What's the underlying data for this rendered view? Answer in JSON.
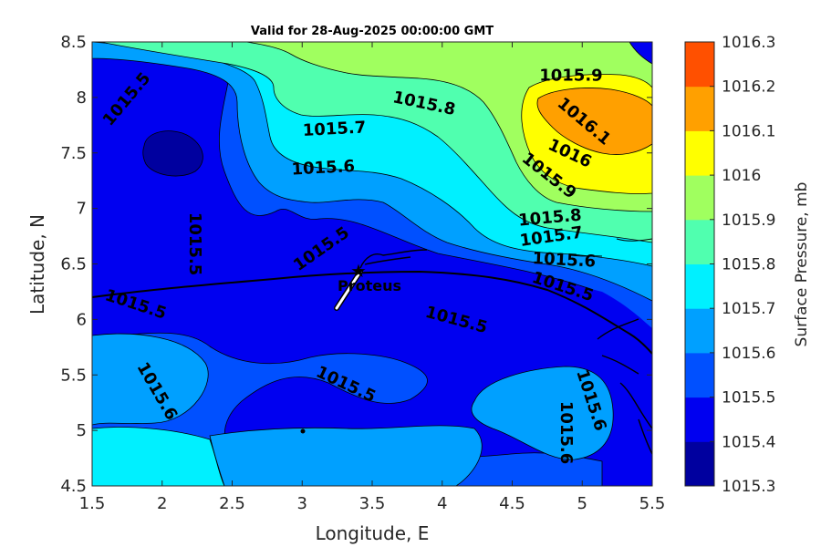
{
  "chart_data": {
    "type": "contour",
    "title": "Valid for 28-Aug-2025 00:00:00 GMT",
    "xlabel": "Longitude, E",
    "ylabel": "Latitude, N",
    "xlim": [
      1.5,
      5.5
    ],
    "ylim": [
      4.5,
      8.5
    ],
    "xticks": [
      "1.5",
      "2",
      "2.5",
      "3",
      "3.5",
      "4",
      "4.5",
      "5",
      "5.5"
    ],
    "yticks": [
      "4.5",
      "5",
      "5.5",
      "6",
      "6.5",
      "7",
      "7.5",
      "8",
      "8.5"
    ],
    "colorbar": {
      "label": "Surface Pressure, mb",
      "levels": [
        1015.3,
        1015.4,
        1015.5,
        1015.6,
        1015.7,
        1015.8,
        1015.9,
        1016.0,
        1016.1,
        1016.2,
        1016.3
      ],
      "tick_labels": [
        "1015.3",
        "1015.4",
        "1015.5",
        "1015.6",
        "1015.7",
        "1015.8",
        "1015.9",
        "1016",
        "1016.1",
        "1016.2",
        "1016.3"
      ],
      "colors": [
        "#00009f",
        "#0000f0",
        "#0050ff",
        "#00a0ff",
        "#00f0ff",
        "#50ffaf",
        "#a0ff5f",
        "#ffff00",
        "#ffa000",
        "#ff5000",
        "#ff0000"
      ]
    },
    "contour_labels": [
      {
        "text": "1015.5",
        "lon": 1.75,
        "lat": 7.98,
        "angle": -50
      },
      {
        "text": "1015.9",
        "lon": 4.92,
        "lat": 8.19,
        "angle": 0
      },
      {
        "text": "1015.8",
        "lon": 3.87,
        "lat": 7.94,
        "angle": 12
      },
      {
        "text": "1015.7",
        "lon": 3.23,
        "lat": 7.71,
        "angle": -3
      },
      {
        "text": "1016.1",
        "lon": 5.01,
        "lat": 7.78,
        "angle": 40
      },
      {
        "text": "1016",
        "lon": 4.91,
        "lat": 7.49,
        "angle": 25
      },
      {
        "text": "1015.6",
        "lon": 3.15,
        "lat": 7.36,
        "angle": -3
      },
      {
        "text": "1015.9",
        "lon": 4.76,
        "lat": 7.29,
        "angle": 38
      },
      {
        "text": "1015.8",
        "lon": 4.77,
        "lat": 6.91,
        "angle": -5
      },
      {
        "text": "1015.5",
        "lon": 2.23,
        "lat": 6.68,
        "angle": 90
      },
      {
        "text": "1015.5",
        "lon": 3.14,
        "lat": 6.63,
        "angle": -35
      },
      {
        "text": "1015.7",
        "lon": 4.78,
        "lat": 6.74,
        "angle": -8
      },
      {
        "text": "1015.6",
        "lon": 4.87,
        "lat": 6.53,
        "angle": 3
      },
      {
        "text": "1015.5",
        "lon": 4.86,
        "lat": 6.29,
        "angle": 18
      },
      {
        "text": "1015.5",
        "lon": 1.81,
        "lat": 6.13,
        "angle": 18
      },
      {
        "text": "1015.5",
        "lon": 4.1,
        "lat": 5.99,
        "angle": 15
      },
      {
        "text": "1015.6",
        "lon": 1.96,
        "lat": 5.35,
        "angle": 60
      },
      {
        "text": "1015.5",
        "lon": 3.31,
        "lat": 5.41,
        "angle": 25
      },
      {
        "text": "1015.6",
        "lon": 5.06,
        "lat": 5.27,
        "angle": 72
      },
      {
        "text": "1015.6",
        "lon": 4.88,
        "lat": 4.98,
        "angle": 90
      }
    ],
    "site": {
      "name": "Proteus",
      "lon": 3.4,
      "lat": 6.43
    }
  }
}
